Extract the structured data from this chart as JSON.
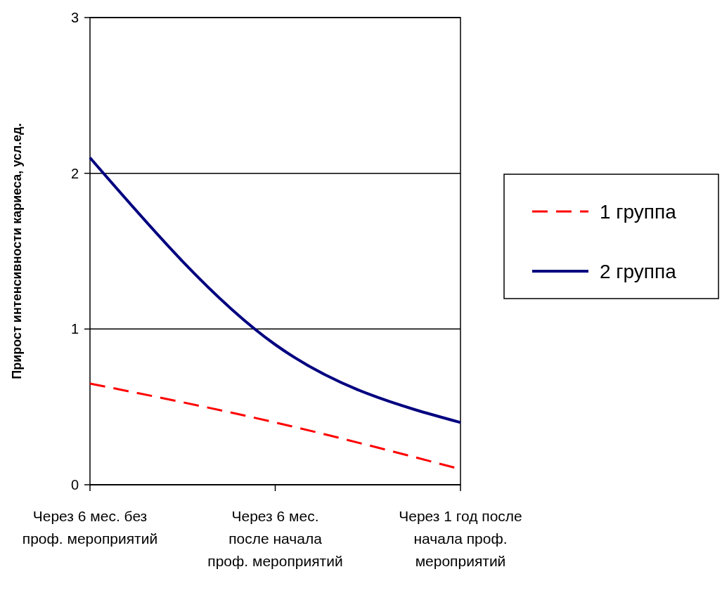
{
  "chart_data": {
    "type": "line",
    "ylabel": "Прирост интенсивности кариеса, усл.ед.",
    "categories": [
      "Через 6 мес. без проф. мероприятий",
      "Через 6 мес. после начала проф. мероприятий",
      "Через 1 год после начала проф. мероприятий"
    ],
    "series": [
      {
        "name": "1 группа",
        "color": "#ff0000",
        "line_style": "dashed",
        "values": [
          0.65,
          0.4,
          0.1
        ]
      },
      {
        "name": "2 группа",
        "color": "#000080",
        "line_style": "solid",
        "values": [
          2.1,
          0.9,
          0.4
        ]
      }
    ],
    "ylim": [
      0,
      3
    ],
    "yticks": [
      0,
      1,
      2,
      3
    ],
    "grid": "y",
    "legend": "right"
  }
}
